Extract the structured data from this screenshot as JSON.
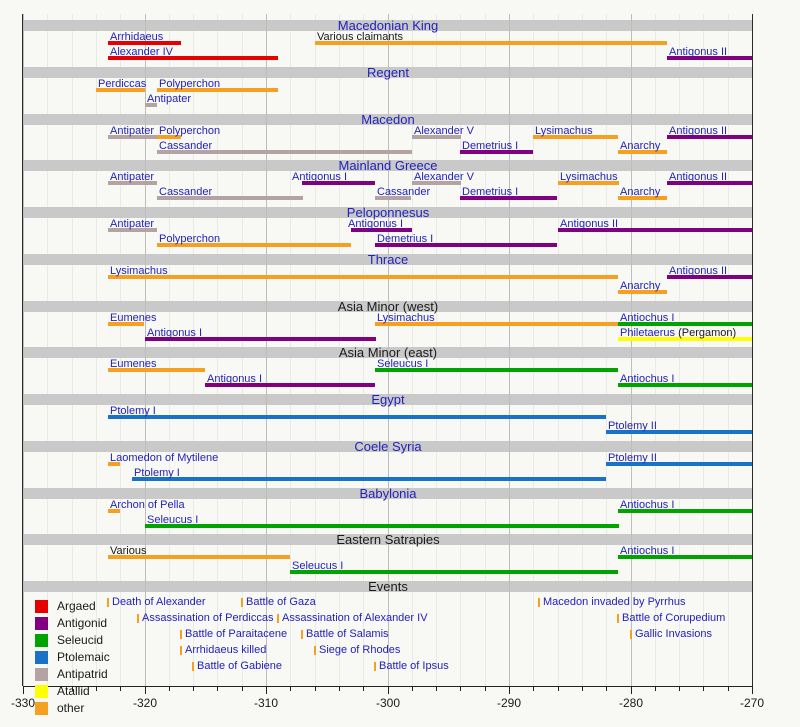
{
  "chart_data": {
    "type": "timeline",
    "axis": {
      "min": -330,
      "max": -270,
      "major_step": 10,
      "minor_step": 2,
      "labels": [
        "-330",
        "-320",
        "-310",
        "-300",
        "-290",
        "-280",
        "-270"
      ]
    },
    "colors": {
      "argaed": "#e60000",
      "antigonid": "#800080",
      "seleucid": "#00a300",
      "ptolemaic": "#1a72c8",
      "antipatrid": "#b3a3a3",
      "attalid": "#ffff00",
      "other": "#f5a021"
    },
    "legend": [
      {
        "label": "Argaed",
        "color": "argaed"
      },
      {
        "label": "Antigonid",
        "color": "antigonid"
      },
      {
        "label": "Seleucid",
        "color": "seleucid"
      },
      {
        "label": "Ptolemaic",
        "color": "ptolemaic"
      },
      {
        "label": "Antipatrid",
        "color": "antipatrid"
      },
      {
        "label": "Atallid",
        "color": "attalid"
      },
      {
        "label": "other",
        "color": "other"
      }
    ],
    "sections": [
      {
        "title": "Macedonian King",
        "title_link": true,
        "rows": [
          [
            {
              "label": "Arrhidaeus",
              "color": "argaed",
              "from": -323,
              "till": -317
            },
            {
              "label": "Various claimants",
              "color": "other",
              "from": -306,
              "till": -277,
              "label_color": "black"
            }
          ],
          [
            {
              "label": "Alexander IV",
              "color": "argaed",
              "from": -323,
              "till": -309
            },
            {
              "label": "Antigonus II",
              "color": "antigonid",
              "from": -277,
              "till": -270
            }
          ]
        ]
      },
      {
        "title": "Regent",
        "title_link": true,
        "rows": [
          [
            {
              "label": "Perdiccas",
              "color": "other",
              "from": -324,
              "till": -320
            },
            {
              "label": "Polyperchon",
              "color": "other",
              "from": -319,
              "till": -309
            }
          ],
          [
            {
              "label": "Antipater",
              "color": "antipatrid",
              "from": -320,
              "till": -319
            }
          ]
        ]
      },
      {
        "title": "Macedon",
        "title_link": true,
        "rows": [
          [
            {
              "label": "Antipater",
              "color": "antipatrid",
              "from": -323,
              "till": -319
            },
            {
              "label": "Polyperchon",
              "color": "other",
              "from": -319,
              "till": -317
            },
            {
              "label": "Alexander V",
              "color": "antipatrid",
              "from": -298,
              "till": -294
            },
            {
              "label": "Lysimachus",
              "color": "other",
              "from": -288,
              "till": -281
            },
            {
              "label": "Antigonus II",
              "color": "antigonid",
              "from": -277,
              "till": -270
            }
          ],
          [
            {
              "label": "Cassander",
              "color": "antipatrid",
              "from": -319,
              "till": -298
            },
            {
              "label": "Demetrius I",
              "color": "antigonid",
              "from": -294,
              "till": -288
            },
            {
              "label": "Anarchy",
              "color": "other",
              "from": -281,
              "till": -277
            }
          ]
        ]
      },
      {
        "title": "Mainland Greece",
        "title_link": true,
        "rows": [
          [
            {
              "label": "Antipater",
              "color": "antipatrid",
              "from": -323,
              "till": -319
            },
            {
              "label": "Antigonus I",
              "color": "antigonid",
              "from": -307,
              "till": -301,
              "label_dx": -12
            },
            {
              "label": "Alexander V",
              "color": "antipatrid",
              "from": -298,
              "till": -294
            },
            {
              "label": "Lysimachus",
              "color": "other",
              "from": -286,
              "till": -281
            },
            {
              "label": "Antigonus II",
              "color": "antigonid",
              "from": -277,
              "till": -270
            }
          ],
          [
            {
              "label": "Cassander",
              "color": "antipatrid",
              "from": -319,
              "till": -307
            },
            {
              "label": "Cassander",
              "color": "antipatrid",
              "from": -301,
              "till": -298
            },
            {
              "label": "Demetrius I",
              "color": "antigonid",
              "from": -294,
              "till": -286
            },
            {
              "label": "Anarchy",
              "color": "other",
              "from": -281,
              "till": -277
            }
          ]
        ]
      },
      {
        "title": "Peloponnesus",
        "title_link": true,
        "rows": [
          [
            {
              "label": "Antipater",
              "color": "antipatrid",
              "from": -323,
              "till": -319
            },
            {
              "label": "Antigonus I",
              "color": "antigonid",
              "from": -303,
              "till": -298,
              "label_dx": -5
            },
            {
              "label": "Antigonus II",
              "color": "antigonid",
              "from": -286,
              "till": -270
            }
          ],
          [
            {
              "label": "Polyperchon",
              "color": "other",
              "from": -319,
              "till": -303
            },
            {
              "label": "Demetrius I",
              "color": "antigonid",
              "from": -301,
              "till": -286
            }
          ]
        ]
      },
      {
        "title": "Thrace",
        "title_link": true,
        "rows": [
          [
            {
              "label": "Lysimachus",
              "color": "other",
              "from": -323,
              "till": -281
            },
            {
              "label": "Antigonus II",
              "color": "antigonid",
              "from": -277,
              "till": -270
            }
          ],
          [
            {
              "label": "Anarchy",
              "color": "other",
              "from": -281,
              "till": -277
            }
          ]
        ]
      },
      {
        "title": "Asia Minor (west)",
        "title_link": false,
        "rows": [
          [
            {
              "label": "Eumenes",
              "color": "other",
              "from": -323,
              "till": -320
            },
            {
              "label": "Lysimachus",
              "color": "other",
              "from": -301,
              "till": -281
            },
            {
              "label": "Antiochus I",
              "color": "seleucid",
              "from": -281,
              "till": -270
            }
          ],
          [
            {
              "label": "Antigonus I",
              "color": "antigonid",
              "from": -320,
              "till": -301
            },
            {
              "label": "Philetaerus",
              "suffix": " (Pergamon)",
              "color": "attalid",
              "from": -281,
              "till": -270
            }
          ]
        ]
      },
      {
        "title": "Asia Minor (east)",
        "title_link": false,
        "rows": [
          [
            {
              "label": "Eumenes",
              "color": "other",
              "from": -323,
              "till": -315
            },
            {
              "label": "Seleucus I",
              "color": "seleucid",
              "from": -301,
              "till": -281
            }
          ],
          [
            {
              "label": "Antigonus I",
              "color": "antigonid",
              "from": -315,
              "till": -301
            },
            {
              "label": "Antiochus I",
              "color": "seleucid",
              "from": -281,
              "till": -270
            }
          ]
        ]
      },
      {
        "title": "Egypt",
        "title_link": true,
        "rows": [
          [
            {
              "label": "Ptolemy I",
              "color": "ptolemaic",
              "from": -323,
              "till": -282
            }
          ],
          [
            {
              "label": "Ptolemy II",
              "color": "ptolemaic",
              "from": -282,
              "till": -270
            }
          ]
        ]
      },
      {
        "title": "Coele Syria",
        "title_link": true,
        "rows": [
          [
            {
              "label": "Laomedon of Mytilene",
              "color": "other",
              "from": -323,
              "till": -322
            },
            {
              "label": "Ptolemy II",
              "color": "ptolemaic",
              "from": -282,
              "till": -270
            }
          ],
          [
            {
              "label": "Ptolemy I",
              "color": "ptolemaic",
              "from": -321,
              "till": -282
            }
          ]
        ]
      },
      {
        "title": "Babylonia",
        "title_link": true,
        "rows": [
          [
            {
              "label": "Archon of Pella",
              "color": "other",
              "from": -323,
              "till": -322
            },
            {
              "label": "Antiochus I",
              "color": "seleucid",
              "from": -281,
              "till": -270
            }
          ],
          [
            {
              "label": "Seleucus I",
              "color": "seleucid",
              "from": -320,
              "till": -281
            }
          ]
        ]
      },
      {
        "title": "Eastern Satrapies",
        "title_link": false,
        "rows": [
          [
            {
              "label": "Various",
              "color": "other",
              "from": -323,
              "till": -308,
              "label_color": "black"
            },
            {
              "label": "Antiochus I",
              "color": "seleucid",
              "from": -281,
              "till": -270
            }
          ],
          [
            {
              "label": "Seleucus I",
              "color": "seleucid",
              "from": -308,
              "till": -281
            }
          ]
        ]
      },
      {
        "title": "Events",
        "title_link": false,
        "rows": []
      }
    ],
    "events": {
      "rows": [
        [
          {
            "year": -323,
            "label": "Death of Alexander"
          },
          {
            "year": -312,
            "label": "Battle of Gaza"
          },
          {
            "year": -287.5,
            "label": "Macedon invaded by Pyrrhus"
          }
        ],
        [
          {
            "year": -320.5,
            "label": "Assassination of Perdiccas"
          },
          {
            "year": -309,
            "label": "Assassination of Alexander IV"
          },
          {
            "year": -281,
            "label": "Battle of Corupedium"
          }
        ],
        [
          {
            "year": -317,
            "label": "Battle of Paraitacene"
          },
          {
            "year": -307,
            "label": "Battle of Salamis"
          },
          {
            "year": -280,
            "label": "Gallic Invasions"
          }
        ],
        [
          {
            "year": -317,
            "label": "Arrhidaeus killed"
          },
          {
            "year": -306,
            "label": "Siege of Rhodes"
          }
        ],
        [
          {
            "year": -316,
            "label": "Battle of Gabiene"
          },
          {
            "year": -301,
            "label": "Battle of Ipsus"
          }
        ]
      ]
    }
  }
}
